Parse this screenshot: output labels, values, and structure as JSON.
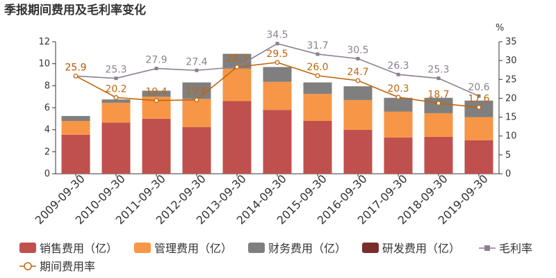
{
  "chart_data": {
    "type": "bar",
    "title": "季报期间费用及毛利率变化",
    "unit_right": "%",
    "categories": [
      "2009-09-30",
      "2010-09-30",
      "2011-09-30",
      "2012-09-30",
      "2013-09-30",
      "2014-09-30",
      "2015-09-30",
      "2016-09-30",
      "2017-09-30",
      "2018-09-30",
      "2019-09-30"
    ],
    "y_left": {
      "min": 0,
      "max": 12,
      "ticks": [
        0,
        2,
        4,
        6,
        8,
        10,
        12
      ]
    },
    "y_right": {
      "min": 0,
      "max": 35,
      "ticks": [
        0,
        5,
        10,
        15,
        20,
        25,
        30,
        35
      ]
    },
    "bar_series": [
      {
        "name": "销售费用（亿）",
        "color": "#c0504d",
        "values": [
          3.55,
          4.65,
          5.0,
          4.25,
          6.6,
          5.8,
          4.8,
          4.0,
          3.3,
          3.35,
          3.05
        ]
      },
      {
        "name": "管理费用（亿）",
        "color": "#f79646",
        "values": [
          1.25,
          1.8,
          2.0,
          2.55,
          2.95,
          2.55,
          2.45,
          2.7,
          2.35,
          2.15,
          2.1
        ]
      },
      {
        "name": "财务费用（亿）",
        "color": "#7f7f7f",
        "values": [
          0.45,
          0.3,
          0.55,
          1.5,
          1.35,
          1.35,
          1.05,
          1.25,
          1.25,
          1.4,
          1.5
        ]
      },
      {
        "name": "研发费用（亿）",
        "color": "#7b2c2c",
        "values": [
          0,
          0,
          0,
          0,
          0,
          0,
          0,
          0,
          0,
          0,
          0
        ]
      }
    ],
    "line_series": [
      {
        "name": "毛利率",
        "color": "#8c7f92",
        "marker": "square",
        "axis": "right",
        "values": [
          25.9,
          25.3,
          27.9,
          27.4,
          28.3,
          34.5,
          31.7,
          30.5,
          26.3,
          25.3,
          20.6
        ],
        "labels": [
          "25.9",
          "25.3",
          "27.9",
          "27.4",
          "28.3",
          "34.5",
          "31.7",
          "30.5",
          "26.3",
          "25.3",
          "20.6"
        ]
      },
      {
        "name": "期间费用率",
        "color": "#c0650b",
        "marker": "circle",
        "axis": "right",
        "values": [
          25.9,
          20.2,
          19.4,
          19.6,
          28.3,
          29.5,
          26.0,
          24.7,
          20.3,
          18.7,
          17.6
        ],
        "labels": [
          "25.9",
          "20.2",
          "19.4",
          "19.6",
          "28.3",
          "29.5",
          "26.0",
          "24.7",
          "20.3",
          "18.7",
          "17.6"
        ]
      }
    ],
    "legend": "bottom",
    "grid": false
  }
}
